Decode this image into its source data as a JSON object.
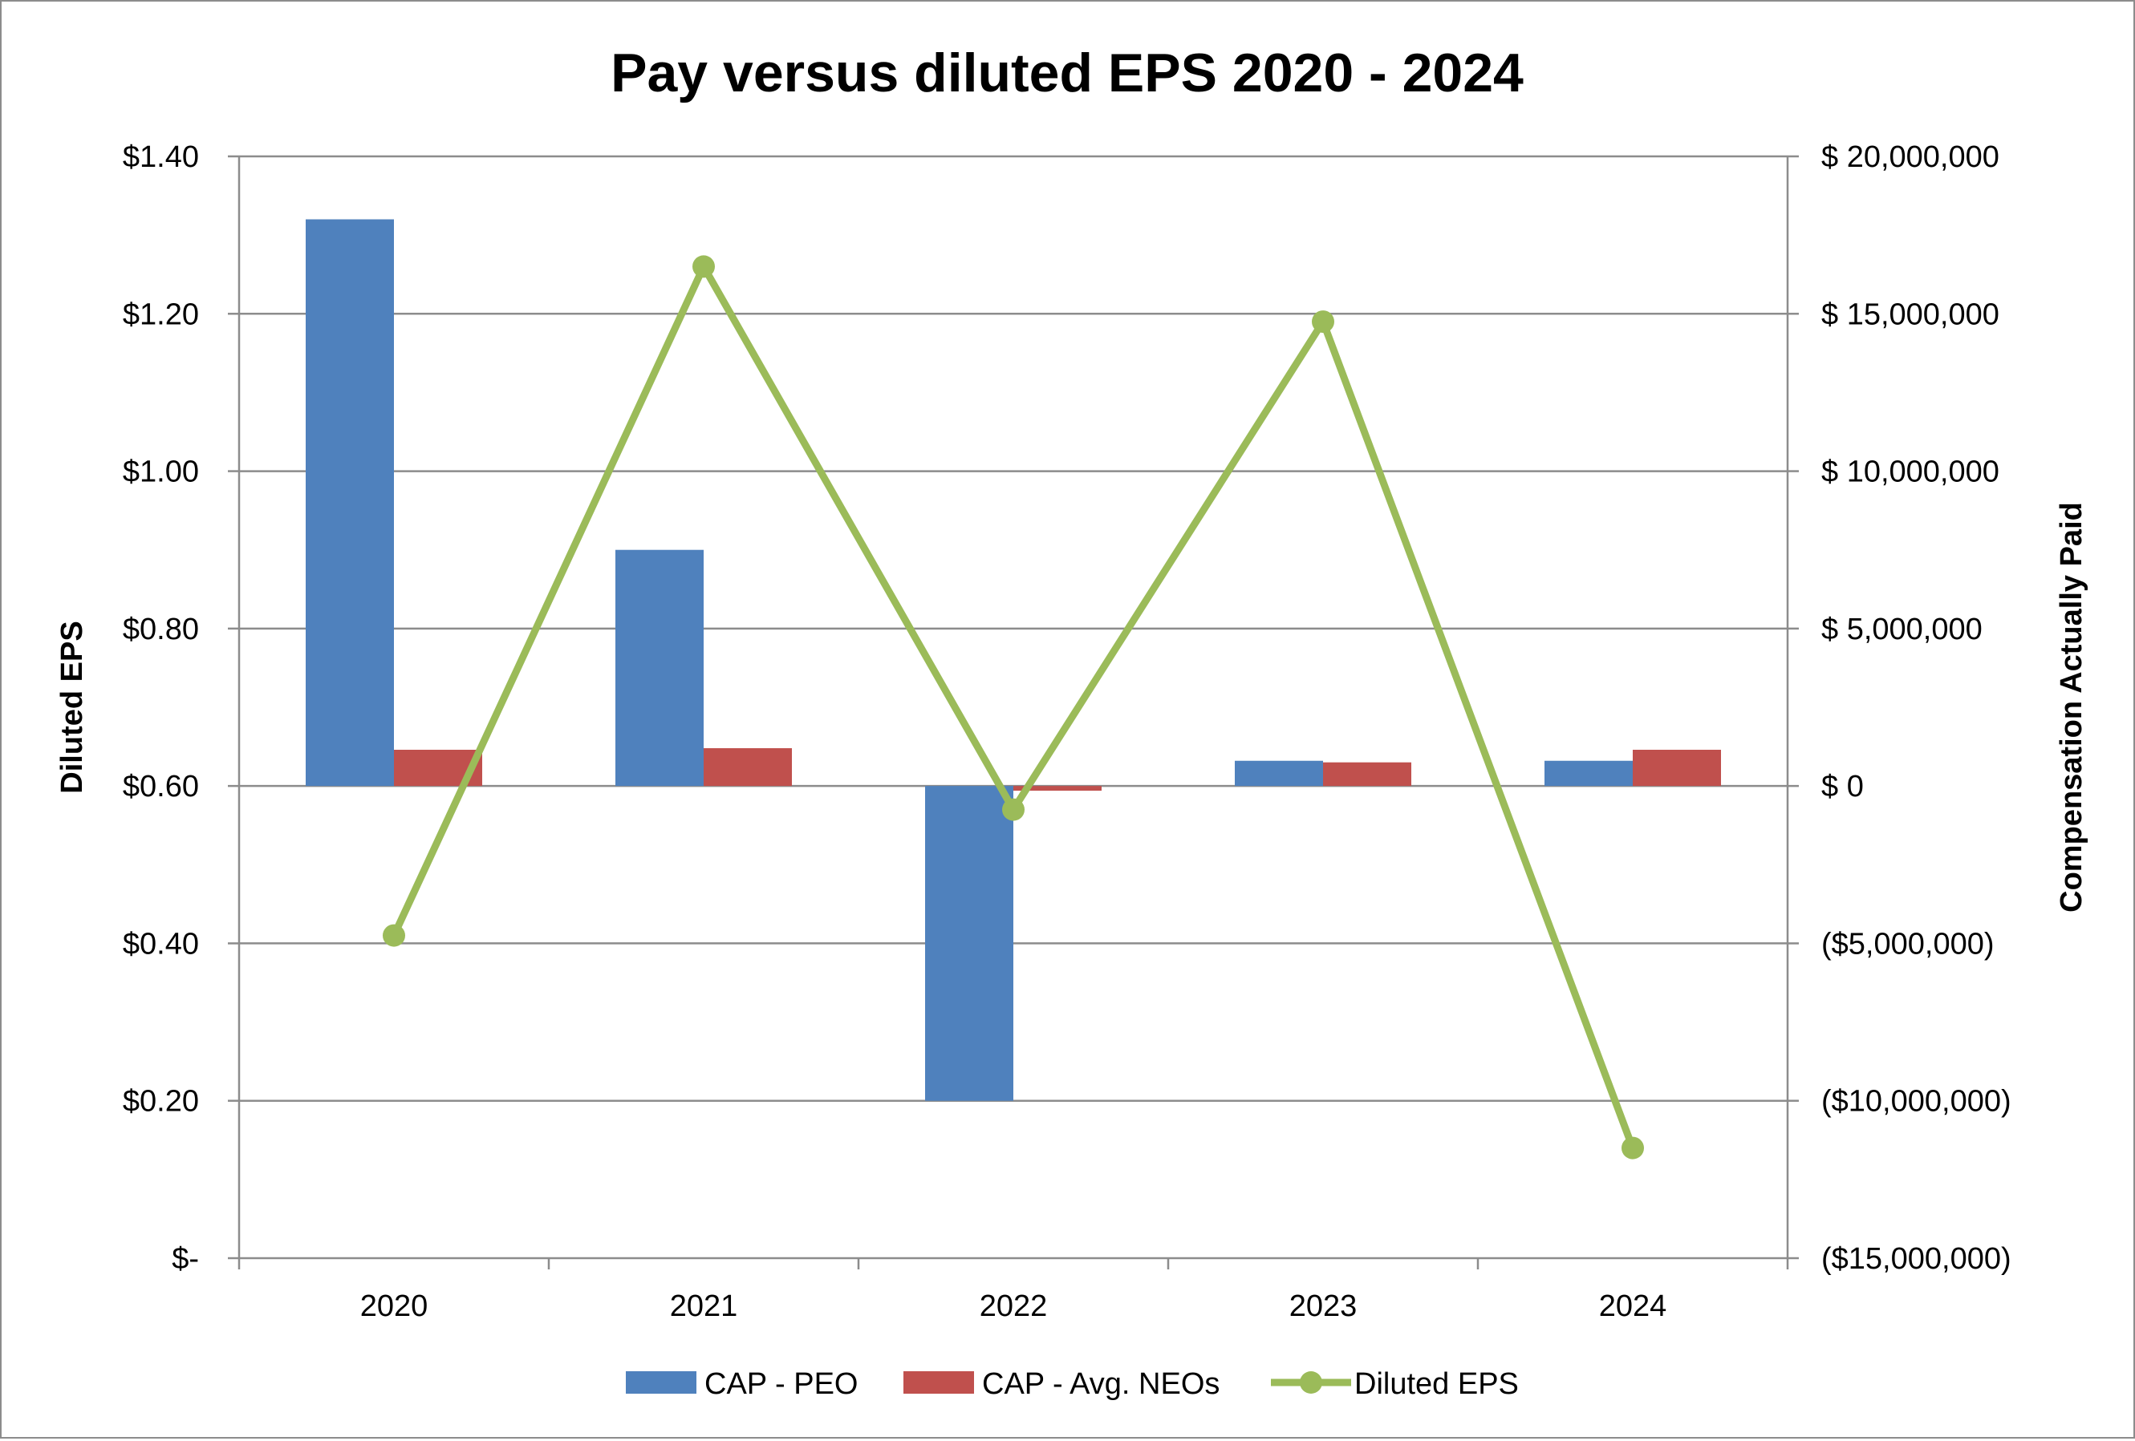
{
  "chart_data": {
    "type": "bar",
    "title": "Pay versus diluted EPS 2020 - 2024",
    "categories": [
      "2020",
      "2021",
      "2022",
      "2023",
      "2024"
    ],
    "series": [
      {
        "name": "CAP - PEO",
        "type": "bar",
        "axis": "right",
        "color": "#4F81BD",
        "values": [
          18000000,
          7500000,
          -10000000,
          800000,
          800000
        ]
      },
      {
        "name": "CAP - Avg. NEOs",
        "type": "bar",
        "axis": "right",
        "color": "#C0504D",
        "values": [
          1150000,
          1200000,
          -150000,
          750000,
          1150000
        ]
      },
      {
        "name": "Diluted EPS",
        "type": "line",
        "axis": "left",
        "color": "#9BBB59",
        "values": [
          0.41,
          1.26,
          0.57,
          1.19,
          0.14
        ]
      }
    ],
    "left_axis": {
      "label": "Diluted EPS",
      "range": [
        0,
        1.4
      ],
      "ticks": [
        0,
        0.2,
        0.4,
        0.6,
        0.8,
        1.0,
        1.2,
        1.4
      ],
      "tick_labels": [
        "$-",
        "$0.20",
        "$0.40",
        "$0.60",
        "$0.80",
        "$1.00",
        "$1.20",
        "$1.40"
      ]
    },
    "right_axis": {
      "label": "Compensation Actually Paid",
      "range": [
        -15000000,
        20000000
      ],
      "ticks": [
        -15000000,
        -10000000,
        -5000000,
        0,
        5000000,
        10000000,
        15000000,
        20000000
      ],
      "tick_labels": [
        "($15,000,000)",
        "($10,000,000)",
        "($5,000,000)",
        "$ 0",
        "$  5,000,000",
        "$  10,000,000",
        "$  15,000,000",
        "$  20,000,000"
      ]
    },
    "grid": true,
    "legend_position": "bottom"
  }
}
